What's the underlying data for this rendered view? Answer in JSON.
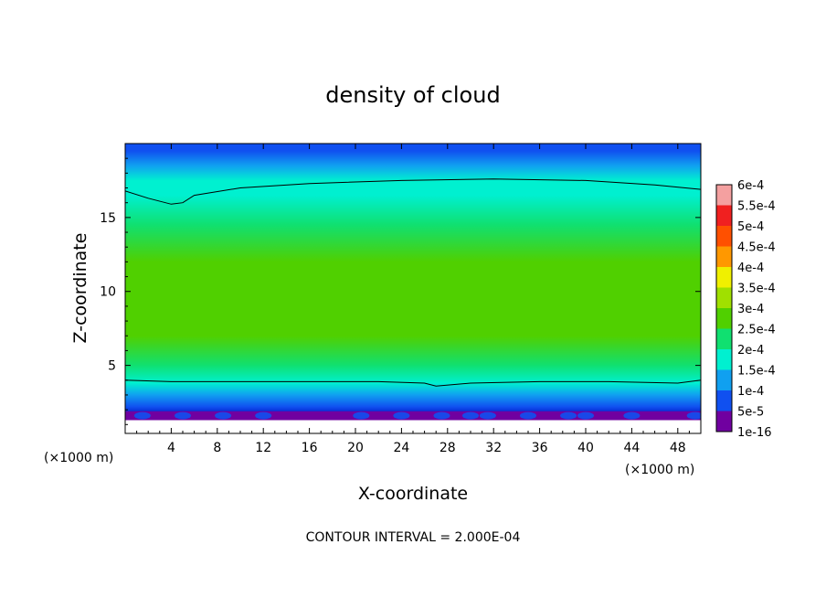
{
  "chart_data": {
    "type": "heatmap",
    "title": "density of cloud",
    "xlabel": "X-coordinate",
    "ylabel": "Z-coordinate",
    "x_unit": "(×1000 m)",
    "xlim": [
      0,
      50
    ],
    "ylim": [
      0.4,
      20
    ],
    "xticks": [
      "4",
      "8",
      "12",
      "16",
      "20",
      "24",
      "28",
      "32",
      "36",
      "40",
      "44",
      "48"
    ],
    "yticks": [
      "5",
      "10",
      "15"
    ],
    "x_tick_values": [
      4,
      8,
      12,
      16,
      20,
      24,
      28,
      32,
      36,
      40,
      44,
      48
    ],
    "y_tick_values": [
      5,
      10,
      15
    ],
    "colorbar": {
      "labels": [
        "6e-4",
        "5.5e-4",
        "5e-4",
        "4.5e-4",
        "4e-4",
        "3.5e-4",
        "3e-4",
        "2.5e-4",
        "2e-4",
        "1.5e-4",
        "1e-4",
        "5e-5",
        "1e-16"
      ],
      "colors": [
        "#f4a0a0",
        "#f02020",
        "#ff5000",
        "#ff9800",
        "#f0f000",
        "#a0e000",
        "#50d000",
        "#10e070",
        "#00f0d0",
        "#10a0f0",
        "#1050f0",
        "#0010c0",
        "#7000a0"
      ]
    },
    "contour_interval": "CONTOUR INTERVAL = 2.000E-04",
    "vertical_profile": [
      {
        "z": 1.3,
        "density": 1e-16
      },
      {
        "z": 1.6,
        "density": 5e-05
      },
      {
        "z": 2.2,
        "density": 0.0001
      },
      {
        "z": 3.0,
        "density": 0.00015
      },
      {
        "z": 3.8,
        "density": 0.0002
      },
      {
        "z": 5.0,
        "density": 0.00025
      },
      {
        "z": 7.0,
        "density": 0.0003
      },
      {
        "z": 9.5,
        "density": 0.00032
      },
      {
        "z": 12.0,
        "density": 0.00031
      },
      {
        "z": 14.5,
        "density": 0.00027
      },
      {
        "z": 16.5,
        "density": 0.00022
      },
      {
        "z": 17.5,
        "density": 0.0002
      },
      {
        "z": 18.5,
        "density": 0.00015
      },
      {
        "z": 19.5,
        "density": 0.0001
      }
    ],
    "contour_2e-4_upper": [
      [
        0,
        16.8
      ],
      [
        2,
        16.3
      ],
      [
        4,
        15.9
      ],
      [
        5,
        16.0
      ],
      [
        6,
        16.5
      ],
      [
        10,
        17.0
      ],
      [
        16,
        17.3
      ],
      [
        24,
        17.5
      ],
      [
        32,
        17.6
      ],
      [
        40,
        17.5
      ],
      [
        46,
        17.2
      ],
      [
        50,
        16.9
      ]
    ],
    "contour_2e-4_lower": [
      [
        0,
        4.0
      ],
      [
        4,
        3.9
      ],
      [
        10,
        3.9
      ],
      [
        16,
        3.9
      ],
      [
        22,
        3.9
      ],
      [
        26,
        3.8
      ],
      [
        27,
        3.6
      ],
      [
        30,
        3.8
      ],
      [
        36,
        3.9
      ],
      [
        42,
        3.9
      ],
      [
        48,
        3.8
      ],
      [
        50,
        4.0
      ]
    ]
  }
}
